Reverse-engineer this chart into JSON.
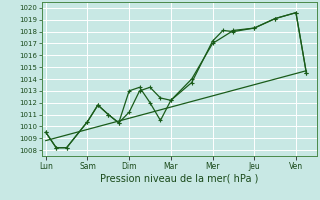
{
  "xlabel": "Pression niveau de la mer( hPa )",
  "background_color": "#c8e8e4",
  "grid_color": "#ffffff",
  "line_color": "#1a5c1a",
  "ylim": [
    1007.5,
    1020.5
  ],
  "xtick_labels": [
    "Lun",
    "Sam",
    "Dim",
    "Mar",
    "Mer",
    "Jeu",
    "Ven"
  ],
  "xtick_positions": [
    0,
    2,
    4,
    6,
    8,
    10,
    12
  ],
  "ytick_values": [
    1008,
    1009,
    1010,
    1011,
    1012,
    1013,
    1014,
    1015,
    1016,
    1017,
    1018,
    1019,
    1020
  ],
  "line1_x": [
    0,
    0.5,
    1.0,
    2.0,
    2.5,
    3.0,
    3.5,
    4.0,
    4.5,
    5.0,
    5.5,
    6.0,
    7.0,
    8.0,
    8.5,
    9.0,
    10.0,
    11.0,
    12.0,
    12.5
  ],
  "line1_y": [
    1009.5,
    1008.2,
    1008.2,
    1010.4,
    1011.8,
    1011.0,
    1010.3,
    1011.2,
    1013.0,
    1013.3,
    1012.4,
    1012.2,
    1013.7,
    1017.2,
    1018.1,
    1018.0,
    1018.3,
    1019.1,
    1019.6,
    1014.5
  ],
  "line2_x": [
    0,
    0.5,
    1.0,
    2.0,
    2.5,
    3.0,
    3.5,
    4.0,
    4.5,
    5.0,
    5.5,
    6.0,
    7.0,
    8.0,
    9.0,
    10.0,
    11.0,
    12.0,
    12.5
  ],
  "line2_y": [
    1009.5,
    1008.2,
    1008.2,
    1010.4,
    1011.8,
    1011.0,
    1010.3,
    1013.0,
    1013.3,
    1012.0,
    1010.5,
    1012.2,
    1014.0,
    1017.0,
    1018.1,
    1018.3,
    1019.1,
    1019.6,
    1014.5
  ],
  "line3_x": [
    0,
    12.5
  ],
  "line3_y": [
    1008.8,
    1014.7
  ],
  "xlim": [
    -0.2,
    13.0
  ]
}
